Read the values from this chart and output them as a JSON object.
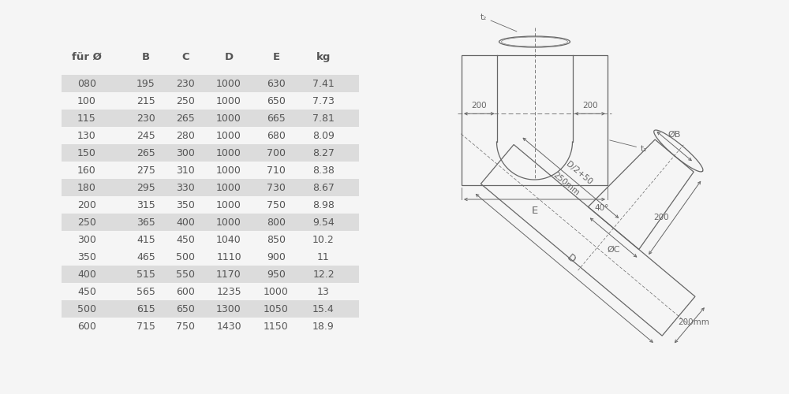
{
  "table_headers": [
    "für Ø",
    "B",
    "C",
    "D",
    "E",
    "kg"
  ],
  "table_data": [
    [
      "080",
      "195",
      "230",
      "1000",
      "630",
      "7.41"
    ],
    [
      "100",
      "215",
      "250",
      "1000",
      "650",
      "7.73"
    ],
    [
      "115",
      "230",
      "265",
      "1000",
      "665",
      "7.81"
    ],
    [
      "130",
      "245",
      "280",
      "1000",
      "680",
      "8.09"
    ],
    [
      "150",
      "265",
      "300",
      "1000",
      "700",
      "8.27"
    ],
    [
      "160",
      "275",
      "310",
      "1000",
      "710",
      "8.38"
    ],
    [
      "180",
      "295",
      "330",
      "1000",
      "730",
      "8.67"
    ],
    [
      "200",
      "315",
      "350",
      "1000",
      "750",
      "8.98"
    ],
    [
      "250",
      "365",
      "400",
      "1000",
      "800",
      "9.54"
    ],
    [
      "300",
      "415",
      "450",
      "1040",
      "850",
      "10.2"
    ],
    [
      "350",
      "465",
      "500",
      "1110",
      "900",
      "11"
    ],
    [
      "400",
      "515",
      "550",
      "1170",
      "950",
      "12.2"
    ],
    [
      "450",
      "565",
      "600",
      "1235",
      "1000",
      "13"
    ],
    [
      "500",
      "615",
      "650",
      "1300",
      "1050",
      "15.4"
    ],
    [
      "600",
      "715",
      "750",
      "1430",
      "1150",
      "18.9"
    ]
  ],
  "shaded_rows": [
    0,
    2,
    4,
    6,
    8,
    11,
    13
  ],
  "row_bg_shaded": "#dcdcdc",
  "text_color": "#555555",
  "line_color": "#666666",
  "bg_color": "#f5f5f5"
}
